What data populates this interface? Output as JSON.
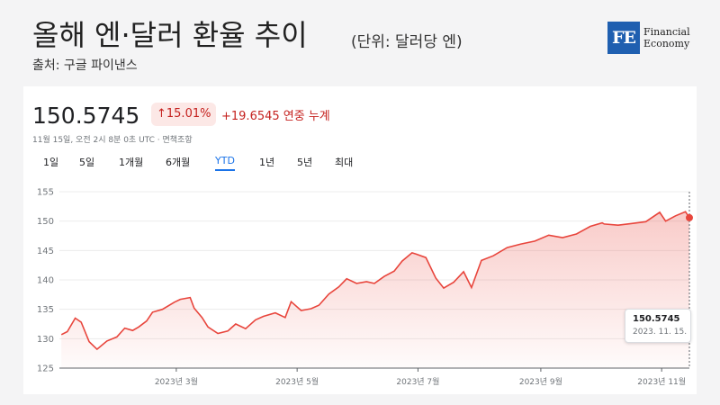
{
  "header": {
    "title": "올해 엔·달러 환율 추이",
    "unit": "(단위: 달러당 엔)",
    "source": "출처: 구글 파이낸스"
  },
  "logo": {
    "mark": "FE",
    "line1": "Financial",
    "line2": "Economy",
    "color": "#1f5fb0"
  },
  "quote": {
    "price": "150.5745",
    "badge": "↑15.01%",
    "change": "+19.6545",
    "change_label": "연중 누계",
    "timestamp": "11월 15일, 오전 2시 8분 0초 UTC · 면책조항"
  },
  "ranges": {
    "items": [
      "1일",
      "5일",
      "1개월",
      "6개월",
      "YTD",
      "1년",
      "5년",
      "최대"
    ],
    "active": "YTD"
  },
  "tooltip": {
    "value": "150.5745",
    "date": "2023. 11. 15."
  },
  "colors": {
    "line": "#e8453c",
    "accent": "#c5221f",
    "active_tab": "#1a73e8"
  },
  "chart_data": {
    "type": "area",
    "x_tick_labels": [
      "2023년 3월",
      "2023년 5월",
      "2023년 7월",
      "2023년 9월",
      "2023년 11월"
    ],
    "y_tick_labels": [
      "155",
      "150",
      "145",
      "140",
      "135",
      "130",
      "125"
    ],
    "ylim": [
      125,
      155
    ],
    "xlim": [
      "2023-01-01",
      "2023-11-15"
    ],
    "grid": true,
    "series": [
      {
        "x": [
          "2023-01-02",
          "2023-01-05",
          "2023-01-09",
          "2023-01-12",
          "2023-01-16",
          "2023-01-20",
          "2023-01-25",
          "2023-01-30",
          "2023-02-03",
          "2023-02-07",
          "2023-02-10",
          "2023-02-14",
          "2023-02-17",
          "2023-02-22",
          "2023-02-28",
          "2023-03-03",
          "2023-03-08",
          "2023-03-10",
          "2023-03-14",
          "2023-03-17",
          "2023-03-22",
          "2023-03-27",
          "2023-03-31",
          "2023-04-05",
          "2023-04-10",
          "2023-04-14",
          "2023-04-20",
          "2023-04-25",
          "2023-04-28",
          "2023-05-03",
          "2023-05-08",
          "2023-05-12",
          "2023-05-17",
          "2023-05-22",
          "2023-05-26",
          "2023-05-31",
          "2023-06-05",
          "2023-06-09",
          "2023-06-14",
          "2023-06-19",
          "2023-06-23",
          "2023-06-28",
          "2023-06-30",
          "2023-07-05",
          "2023-07-10",
          "2023-07-14",
          "2023-07-19",
          "2023-07-24",
          "2023-07-28",
          "2023-08-02",
          "2023-08-08",
          "2023-08-15",
          "2023-08-22",
          "2023-08-29",
          "2023-09-05",
          "2023-09-12",
          "2023-09-19",
          "2023-09-26",
          "2023-10-02",
          "2023-10-03",
          "2023-10-10",
          "2023-10-17",
          "2023-10-24",
          "2023-10-31",
          "2023-11-03",
          "2023-11-08",
          "2023-11-13",
          "2023-11-15"
        ],
        "values": [
          130.7,
          131.2,
          133.5,
          132.8,
          129.5,
          128.2,
          129.6,
          130.3,
          131.8,
          131.4,
          132.0,
          133.0,
          134.5,
          135.0,
          136.2,
          136.7,
          137.0,
          135.2,
          133.6,
          132.0,
          130.9,
          131.3,
          132.5,
          131.7,
          133.2,
          133.8,
          134.4,
          133.6,
          136.3,
          134.8,
          135.1,
          135.7,
          137.6,
          138.8,
          140.2,
          139.4,
          139.7,
          139.4,
          140.6,
          141.5,
          143.2,
          144.6,
          144.4,
          143.8,
          140.3,
          138.6,
          139.6,
          141.4,
          138.7,
          143.3,
          144.1,
          145.5,
          146.1,
          146.6,
          147.6,
          147.2,
          147.8,
          149.1,
          149.7,
          149.5,
          149.3,
          149.6,
          149.9,
          151.5,
          150.0,
          150.9,
          151.6,
          150.5745
        ]
      }
    ]
  }
}
